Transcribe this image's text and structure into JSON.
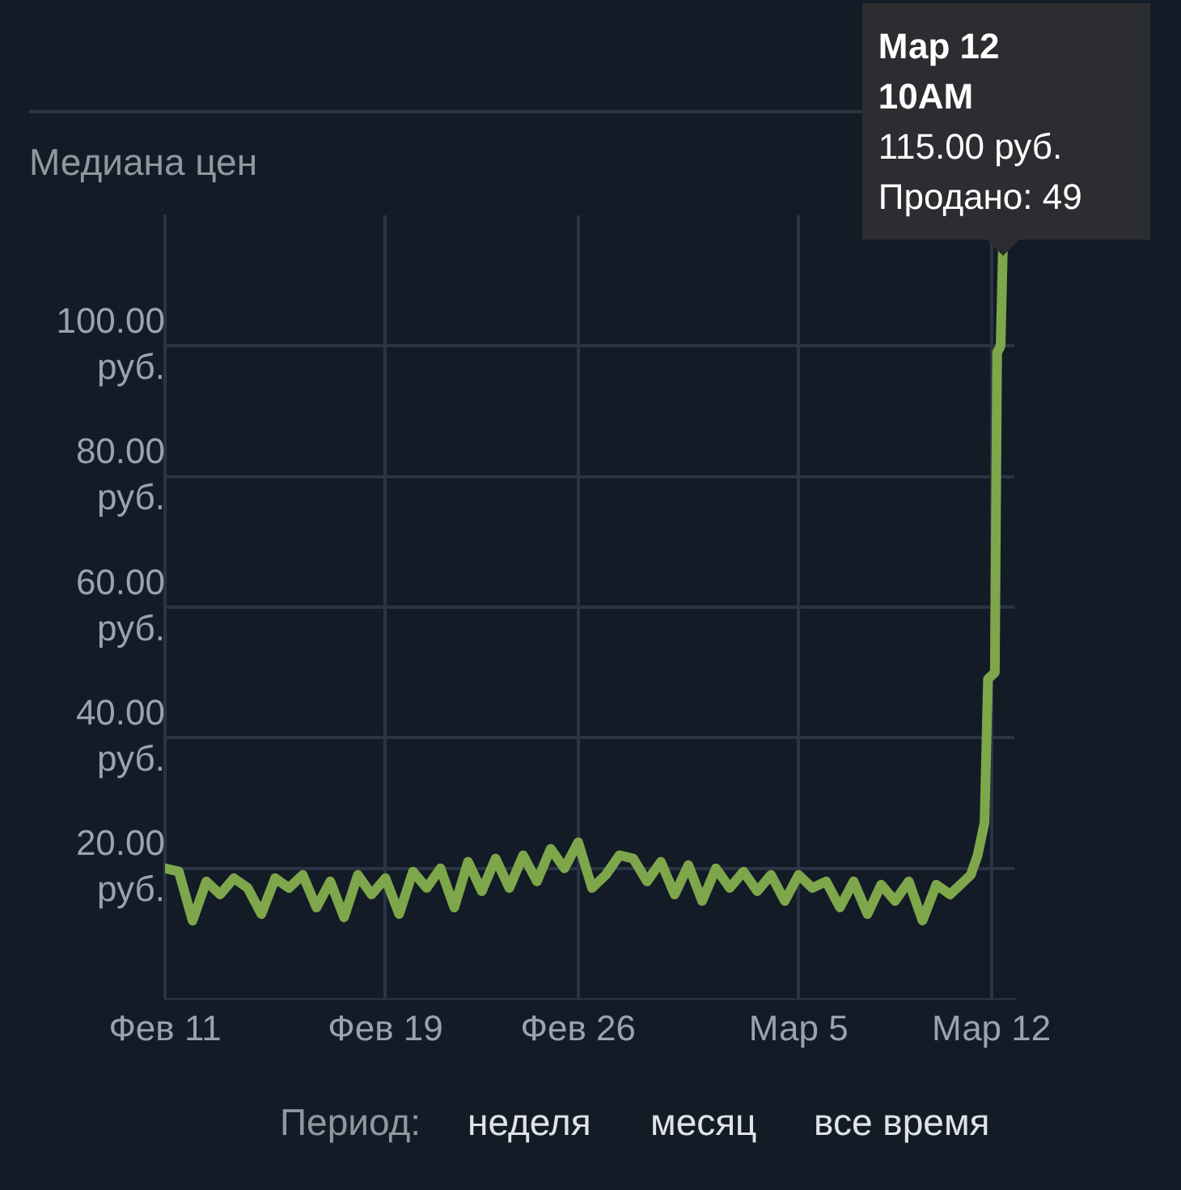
{
  "chart_data": {
    "type": "line",
    "ylabel": "Медиана цен",
    "x": [
      "--02-11",
      "--02-11T12:00",
      "--02-12",
      "--02-12T12:00",
      "--02-13",
      "--02-13T12:00",
      "--02-14",
      "--02-14T12:00",
      "--02-15",
      "--02-15T12:00",
      "--02-16",
      "--02-16T12:00",
      "--02-17",
      "--02-17T12:00",
      "--02-18",
      "--02-18T12:00",
      "--02-19",
      "--02-19T12:00",
      "--02-20",
      "--02-20T12:00",
      "--02-21",
      "--02-21T12:00",
      "--02-22",
      "--02-22T12:00",
      "--02-23",
      "--02-23T12:00",
      "--02-24",
      "--02-24T12:00",
      "--02-25",
      "--02-25T12:00",
      "--02-26",
      "--02-26T12:00",
      "--02-27",
      "--02-27T12:00",
      "--02-28",
      "--02-28T12:00",
      "--02-29",
      "--02-29T12:00",
      "--03-01",
      "--03-01T12:00",
      "--03-02",
      "--03-02T12:00",
      "--03-03",
      "--03-03T12:00",
      "--03-04",
      "--03-04T12:00",
      "--03-05",
      "--03-05T12:00",
      "--03-06",
      "--03-06T12:00",
      "--03-07",
      "--03-07T12:00",
      "--03-08",
      "--03-08T12:00",
      "--03-09",
      "--03-09T12:00",
      "--03-10",
      "--03-10T12:00",
      "--03-11",
      "--03-11T06:00",
      "--03-11T12:00",
      "--03-11T18:00",
      "--03-11T21:00",
      "--03-12T03:00",
      "--03-12T05:00",
      "--03-12T08:00",
      "--03-12T10:00"
    ],
    "series": [
      {
        "color": "#7ea64b",
        "values": [
          20,
          19.5,
          12,
          18,
          16,
          18.5,
          17,
          13,
          18.5,
          17,
          19,
          14,
          18,
          12.5,
          19,
          16,
          18.5,
          13,
          19.5,
          17,
          20,
          14,
          21,
          16.5,
          21.5,
          17,
          22,
          18,
          23,
          20,
          24,
          17,
          19,
          22,
          21.5,
          18,
          21,
          16,
          20.5,
          15,
          20,
          17,
          19.5,
          16.5,
          19,
          15,
          19,
          17,
          18,
          14,
          18,
          13,
          17.5,
          15,
          18,
          12,
          17.5,
          16,
          18,
          19,
          22,
          27,
          49,
          50,
          99,
          100,
          115
        ]
      }
    ],
    "xlim": [
      "--02-11",
      "--03-12T20:00"
    ],
    "xticks": [
      {
        "value": "--02-11",
        "label": "Фев 11"
      },
      {
        "value": "--02-19",
        "label": "Фев 19"
      },
      {
        "value": "--02-26",
        "label": "Фев 26"
      },
      {
        "value": "--03-05",
        "label": "Мар 5"
      },
      {
        "value": "--03-12",
        "label": "Мар 12"
      }
    ],
    "ylim": [
      0,
      120
    ],
    "yticks": [
      {
        "value": 20,
        "label": "20.00 руб."
      },
      {
        "value": 40,
        "label": "40.00 руб."
      },
      {
        "value": 60,
        "label": "60.00 руб."
      },
      {
        "value": 80,
        "label": "80.00 руб."
      },
      {
        "value": 100,
        "label": "100.00 руб."
      }
    ],
    "grid": true,
    "legend": false,
    "marker": "none",
    "line_style": "solid",
    "annotations": [
      {
        "text": "Мар 12\n10AM\n115.00 руб.\nПродано: 49",
        "x": "--03-12T10:00",
        "y": 115
      },
      "Период:",
      "неделя",
      "месяц",
      "все время"
    ]
  }
}
